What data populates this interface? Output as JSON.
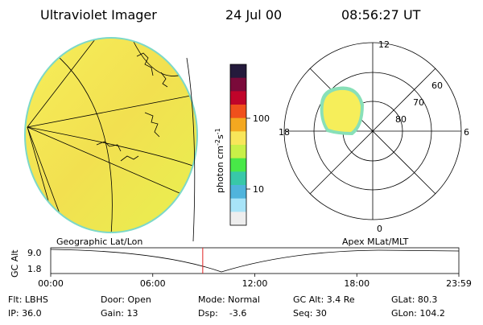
{
  "header": {
    "instrument": "Ultraviolet Imager",
    "date": "24 Jul 00",
    "time": "08:56:27 UT"
  },
  "colorbar": {
    "label_main": "photon cm",
    "label_exp1": "-2",
    "label_mid": "s",
    "label_exp2": "-1",
    "ticks": [
      "100",
      "10"
    ],
    "colors": [
      "#241a3c",
      "#7a0a3a",
      "#c0042a",
      "#f0501c",
      "#f4a820",
      "#f8e65a",
      "#c8f048",
      "#48e848",
      "#38c8a8",
      "#50b4dc",
      "#a8e4f8",
      "#eeeeee"
    ]
  },
  "polar_plot": {
    "mlt_labels": {
      "top": "12",
      "left": "18",
      "right": "6",
      "bottom": "0"
    },
    "lat_labels": [
      "60",
      "70",
      "80"
    ]
  },
  "timeline": {
    "left_title": "Geographic Lat/Lon",
    "right_title": "Apex MLat/MLT",
    "axis_label": "GC Alt",
    "y_ticks": [
      "9.0",
      "1.8"
    ],
    "x_ticks": [
      "00:00",
      "06:00",
      "12:00",
      "18:00",
      "23:59"
    ],
    "current_time": "08:56",
    "marker_color": "#e02020"
  },
  "status": {
    "flt": "Flt: LBHS",
    "ip": "IP: 36.0",
    "door": "Door: Open",
    "gain": "Gain: 13",
    "mode": "Mode: Normal",
    "dsp": "Dsp:    -3.6",
    "gc_alt": "GC Alt: 3.4 Re",
    "seq": "Seq: 30",
    "glat": "GLat: 80.3",
    "glon": "GLon: 104.2"
  }
}
